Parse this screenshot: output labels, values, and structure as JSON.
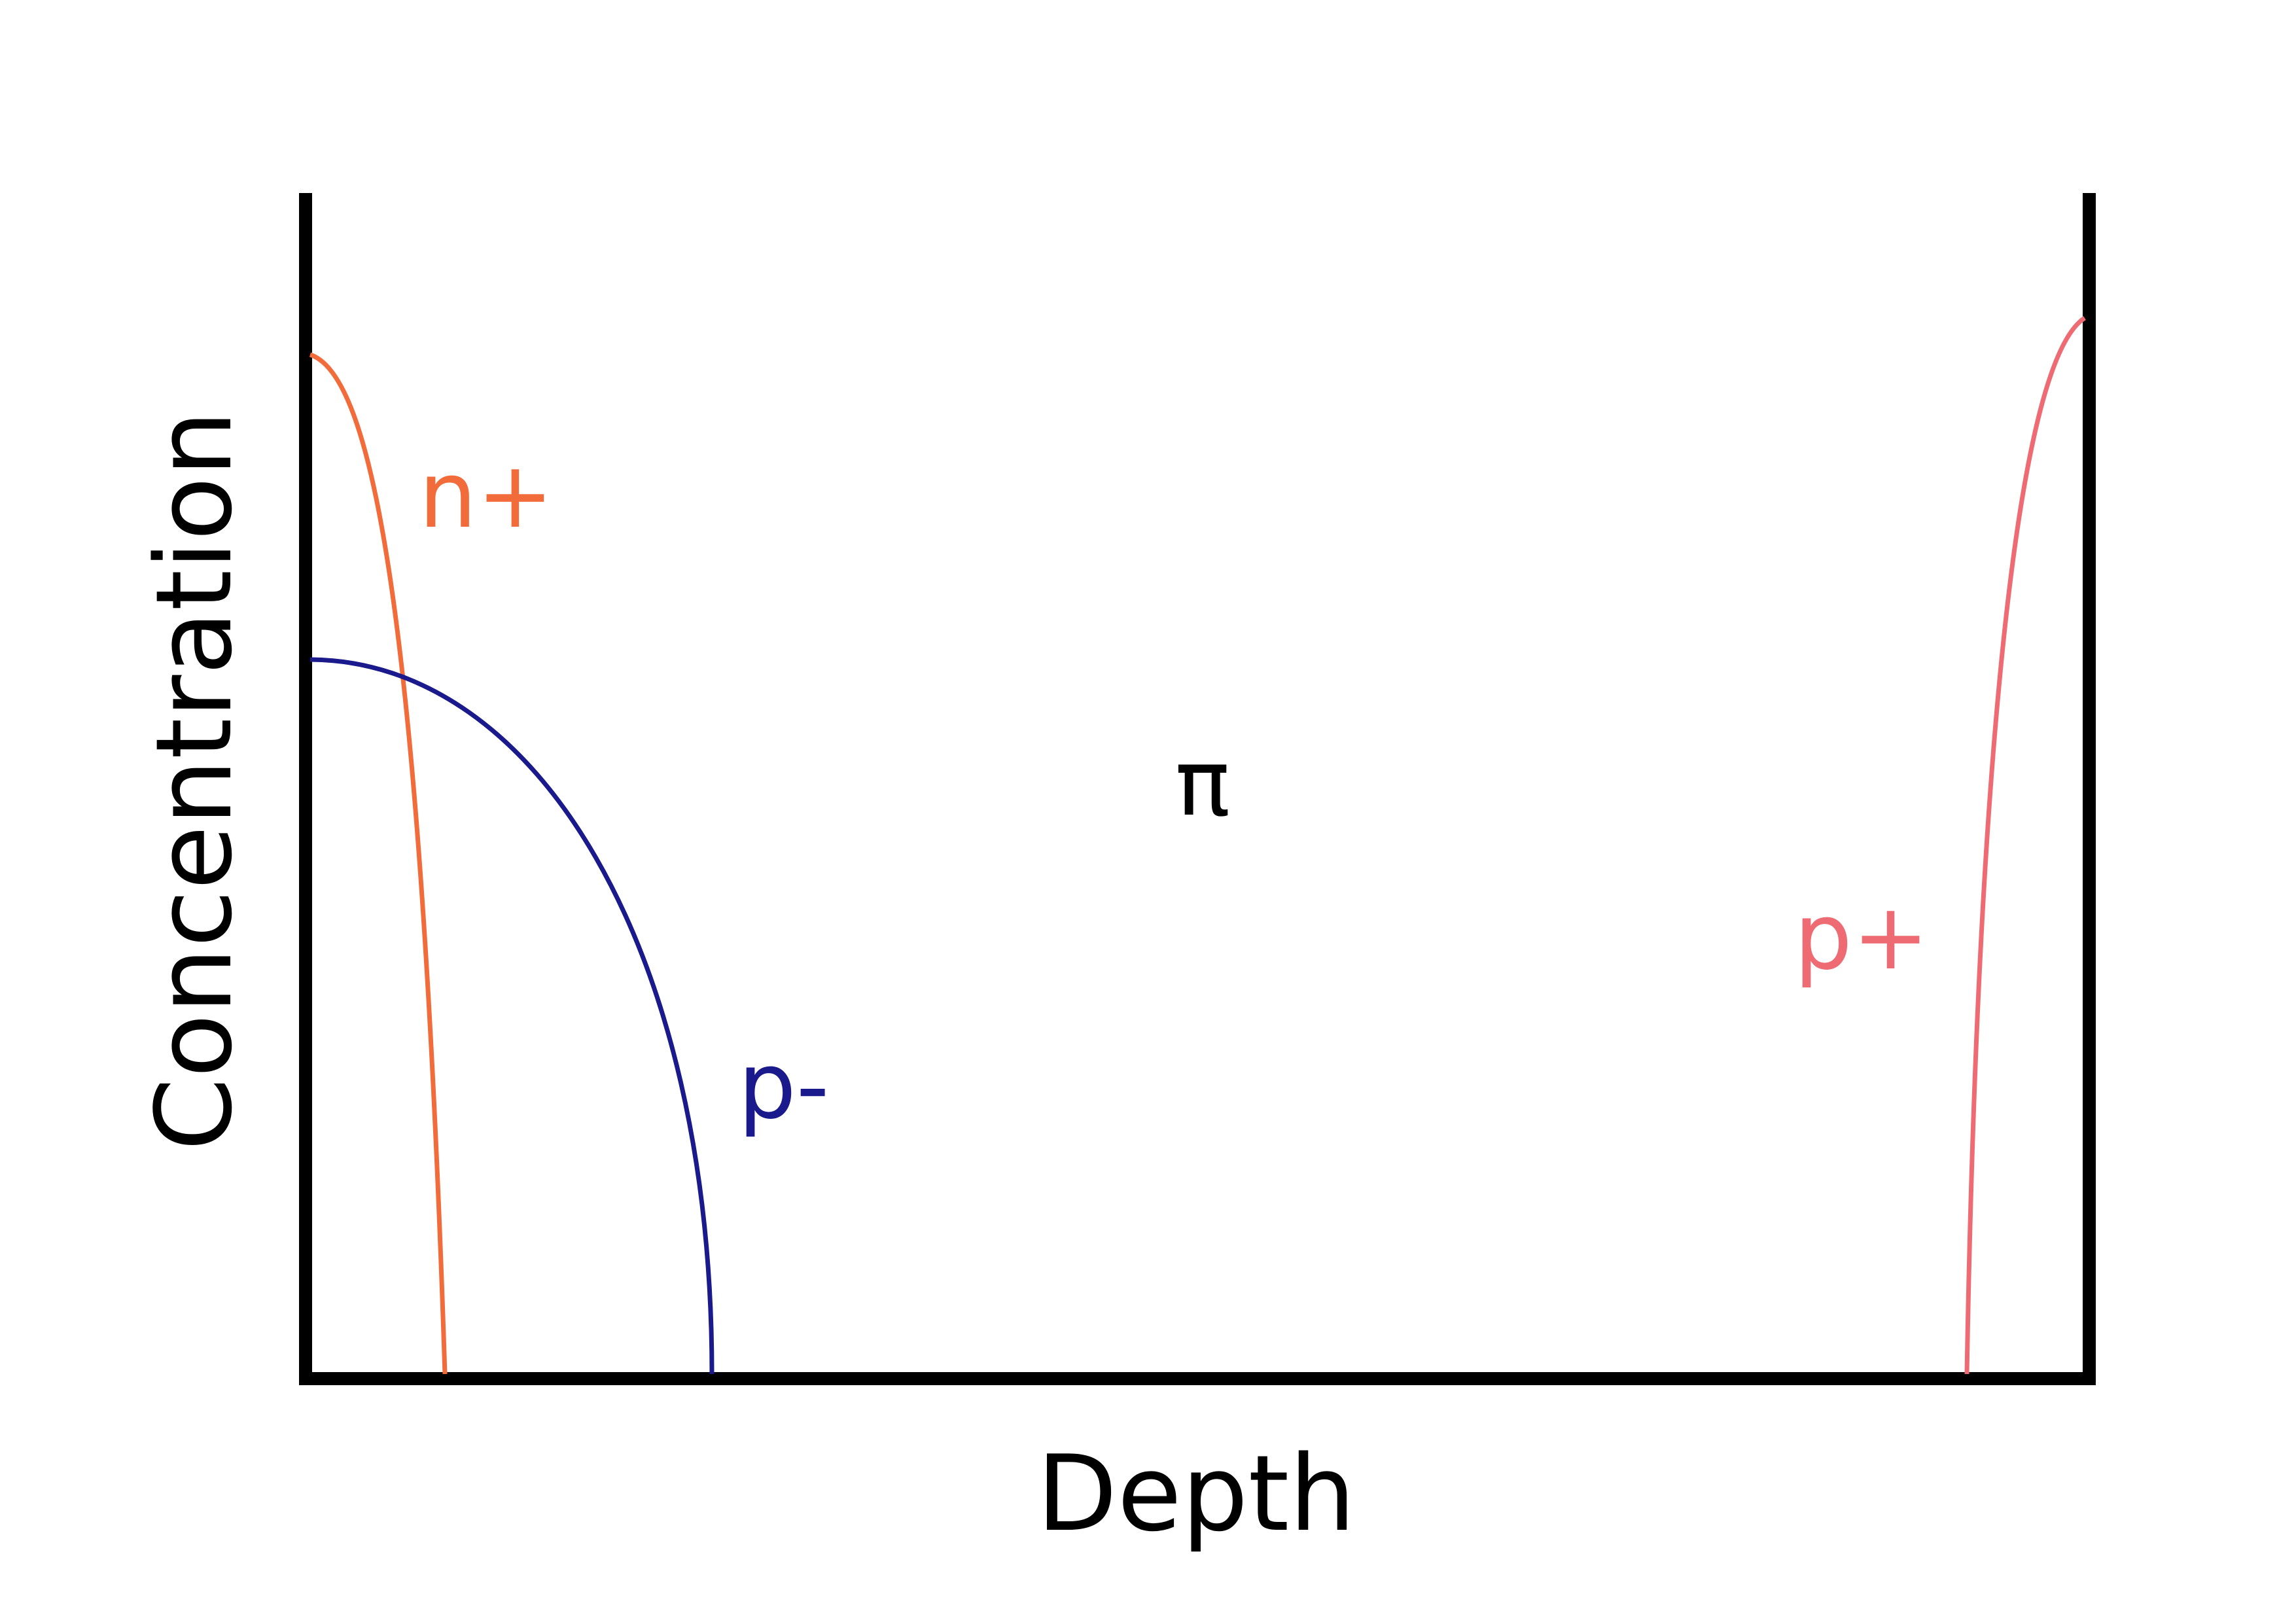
{
  "axes": {
    "x_label": "Depth",
    "y_label": "Concentration"
  },
  "regions": {
    "n_plus": {
      "label": "n+",
      "color": "#f26b3a"
    },
    "p_minus": {
      "label": "p-",
      "color": "#1a1a8c"
    },
    "pi": {
      "label": "π",
      "color": "#000000"
    },
    "p_plus": {
      "label": "p+",
      "color": "#ef6b73"
    }
  },
  "colors": {
    "axis": "#000000",
    "background": "#ffffff"
  }
}
